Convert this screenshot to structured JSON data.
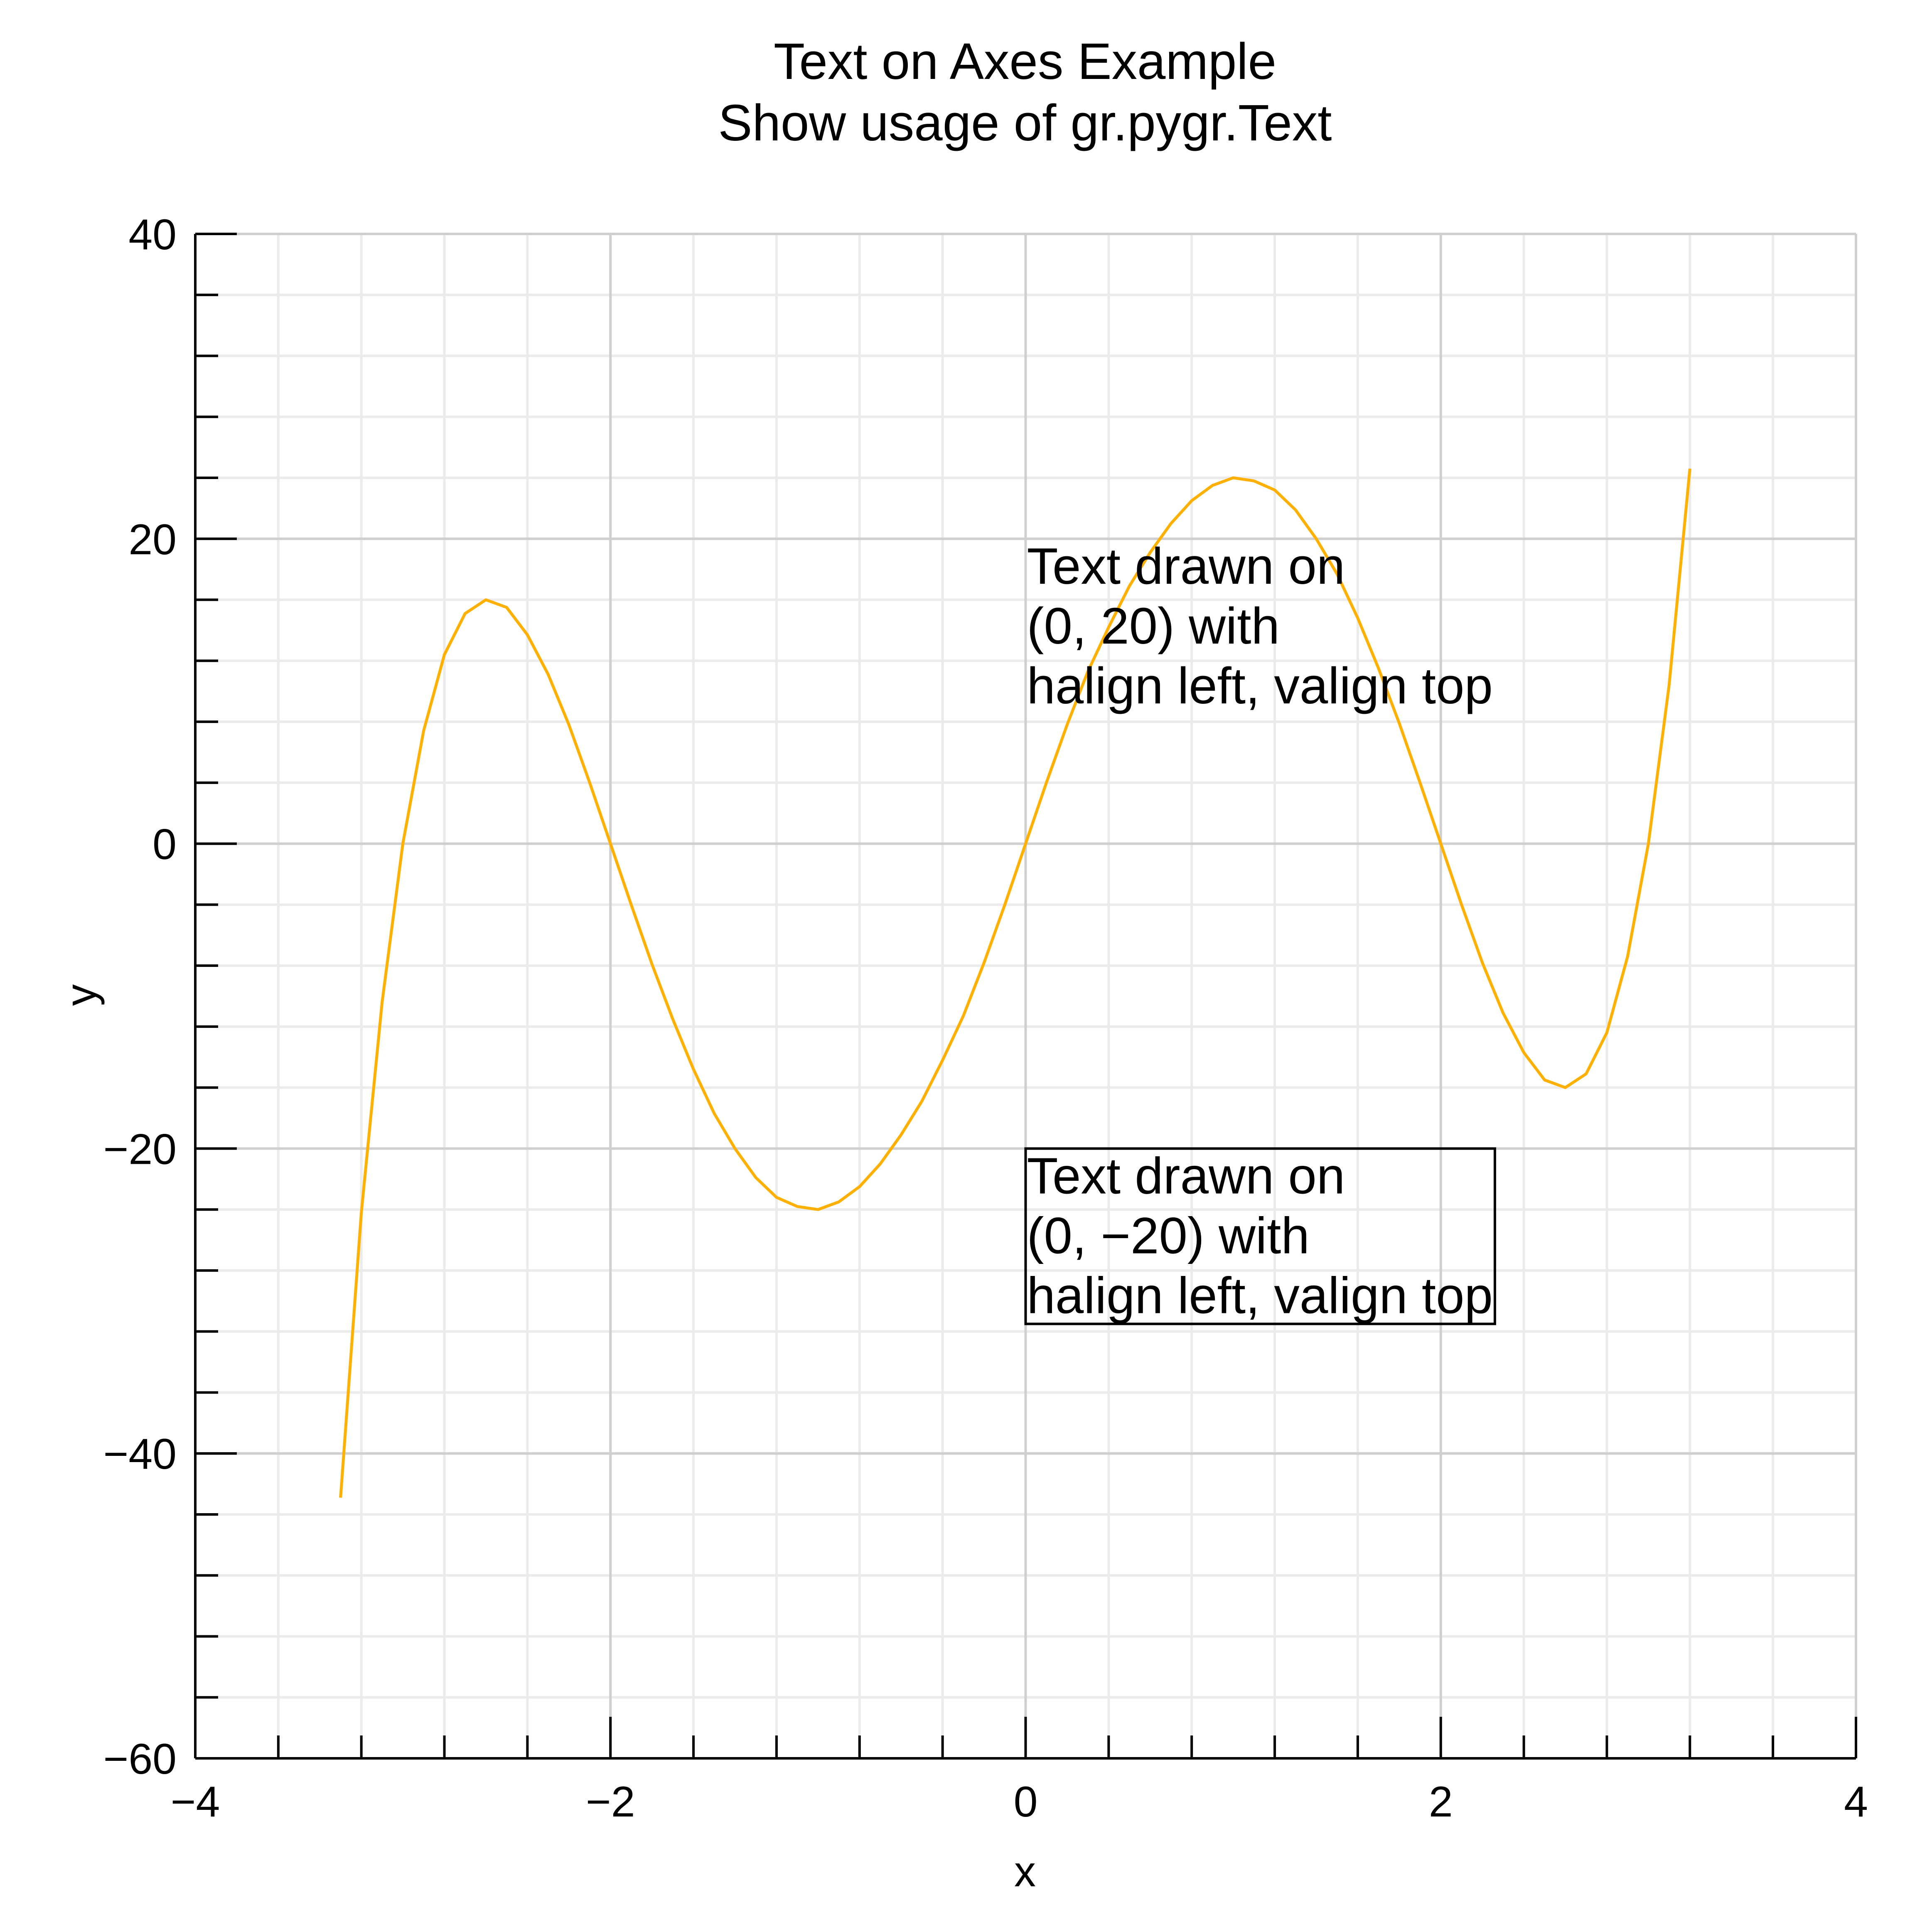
{
  "chart_data": {
    "type": "line",
    "title": "Text on Axes Example",
    "subtitle": "Show usage of gr.pygr.Text",
    "xlabel": "x",
    "ylabel": "y",
    "xlim": [
      -4,
      4
    ],
    "ylim": [
      -60,
      40
    ],
    "x_ticks": [
      -4,
      -2,
      0,
      2,
      4
    ],
    "y_ticks": [
      -60,
      -40,
      -20,
      0,
      20,
      40
    ],
    "x_tick_labels": [
      "−4",
      "−2",
      "0",
      "2",
      "4"
    ],
    "y_tick_labels": [
      "−60",
      "−40",
      "−20",
      "0",
      "20",
      "40"
    ],
    "x_minor_step": 0.4,
    "y_minor_step": 4,
    "grid": true,
    "series": [
      {
        "color": "#ffb000",
        "x": [
          -3.3,
          -3.2,
          -3.1,
          -3.0,
          -2.9,
          -2.8,
          -2.7,
          -2.6,
          -2.5,
          -2.4,
          -2.3,
          -2.2,
          -2.1,
          -2.0,
          -1.9,
          -1.8,
          -1.7,
          -1.6,
          -1.5,
          -1.4,
          -1.3,
          -1.2,
          -1.1,
          -1.0,
          -0.9,
          -0.8,
          -0.7,
          -0.6,
          -0.5,
          -0.4,
          -0.3,
          -0.2,
          -0.1,
          0.0,
          0.1,
          0.2,
          0.3,
          0.4,
          0.5,
          0.6,
          0.7,
          0.8,
          0.9,
          1.0,
          1.1,
          1.2,
          1.3,
          1.4,
          1.5,
          1.6,
          1.7,
          1.8,
          1.9,
          2.0,
          2.1,
          2.2,
          2.3,
          2.4,
          2.5,
          2.6,
          2.7,
          2.8,
          2.9,
          3.0,
          3.1,
          3.2
        ],
        "y": [
          -42.9,
          -24.2,
          -10.4,
          0.0,
          7.4,
          12.4,
          15.1,
          16.0,
          15.5,
          13.7,
          11.1,
          7.8,
          4.0,
          0.0,
          -4.0,
          -7.9,
          -11.5,
          -14.8,
          -17.7,
          -20.0,
          -21.9,
          -23.2,
          -23.8,
          -24.0,
          -23.5,
          -22.5,
          -21.0,
          -19.1,
          -16.9,
          -14.2,
          -11.3,
          -7.8,
          -4.0,
          0.0,
          4.0,
          7.8,
          11.3,
          14.2,
          16.9,
          19.1,
          21.0,
          22.5,
          23.5,
          24.0,
          23.8,
          23.2,
          21.9,
          20.0,
          17.7,
          14.8,
          11.5,
          7.9,
          4.0,
          0.0,
          -4.0,
          -7.8,
          -11.1,
          -13.7,
          -15.5,
          -16.0,
          -15.1,
          -12.4,
          -7.4,
          0.0,
          10.4,
          24.6
        ]
      }
    ],
    "annotations": [
      {
        "x": 0,
        "y": 20,
        "lines": [
          "Text drawn on",
          "(0, 20) with",
          "halign left, valign top"
        ],
        "boxed": false
      },
      {
        "x": 0,
        "y": -20,
        "lines": [
          "Text drawn on",
          "(0, −20) with",
          "halign left, valign top"
        ],
        "boxed": true
      }
    ]
  }
}
